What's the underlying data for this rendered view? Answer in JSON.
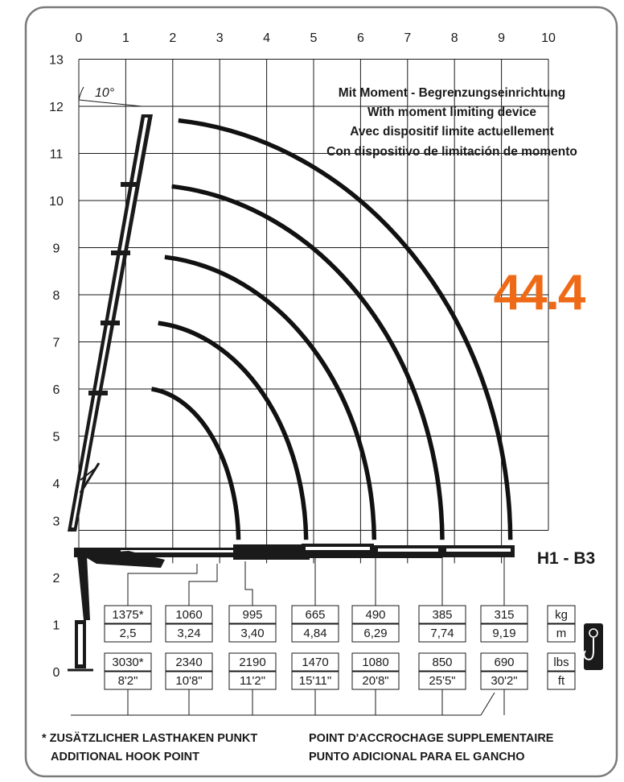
{
  "frame": {
    "border_color": "#7a7a7a"
  },
  "axes": {
    "x_ticks": [
      "0",
      "1",
      "2",
      "3",
      "4",
      "5",
      "6",
      "7",
      "8",
      "9",
      "10"
    ],
    "y_ticks": [
      "0",
      "1",
      "2",
      "3",
      "4",
      "5",
      "6",
      "7",
      "8",
      "9",
      "10",
      "11",
      "12",
      "13"
    ]
  },
  "boom_angle_label": "10°",
  "headings": [
    "Mit Moment - Begrenzungseinrichtung",
    "With moment limiting device",
    "Avec dispositif limite actuellement",
    "Con dispositivo de limitación de momento"
  ],
  "model_number": "44.4",
  "model_code": "H1 - B3",
  "colors": {
    "accent": "#ef6a16",
    "ink": "#1a1a1a"
  },
  "metric_rows": {
    "load": [
      "1375*",
      "1060",
      "995",
      "665",
      "490",
      "385",
      "315"
    ],
    "reach": [
      "2,5",
      "3,24",
      "3,40",
      "4,84",
      "6,29",
      "7,74",
      "9,19"
    ],
    "units": [
      "kg",
      "m"
    ]
  },
  "imperial_rows": {
    "load": [
      "3030*",
      "2340",
      "2190",
      "1470",
      "1080",
      "850",
      "690"
    ],
    "reach": [
      "8'2\"",
      "10'8\"",
      "11'2\"",
      "15'11\"",
      "20'8\"",
      "25'5\"",
      "30'2\""
    ],
    "units": [
      "lbs",
      "ft"
    ]
  },
  "hook_icon": "crane-hook-icon",
  "footnotes": {
    "left": [
      "* ZUSÄTZLICHER LASTHAKEN PUNKT",
      "ADDITIONAL HOOK POINT"
    ],
    "right": [
      "POINT D'ACCROCHAGE SUPPLEMENTAIRE",
      "PUNTO ADICIONAL PARA EL GANCHO"
    ]
  },
  "chart_data": {
    "type": "load-range-diagram",
    "xlim": [
      0,
      10
    ],
    "ylim": [
      0,
      13
    ],
    "boom_angle_deg": 10,
    "arcs": [
      {
        "reach_m": 3.4,
        "top_height_m": 6.0
      },
      {
        "reach_m": 4.84,
        "top_height_m": 7.4
      },
      {
        "reach_m": 6.29,
        "top_height_m": 8.8
      },
      {
        "reach_m": 7.74,
        "top_height_m": 10.3
      },
      {
        "reach_m": 9.19,
        "top_height_m": 11.7
      }
    ],
    "load_points": [
      {
        "reach_m": 2.5,
        "load_kg": 1375
      },
      {
        "reach_m": 3.24,
        "load_kg": 1060
      },
      {
        "reach_m": 3.4,
        "load_kg": 995
      },
      {
        "reach_m": 4.84,
        "load_kg": 665
      },
      {
        "reach_m": 6.29,
        "load_kg": 490
      },
      {
        "reach_m": 7.74,
        "load_kg": 385
      },
      {
        "reach_m": 9.19,
        "load_kg": 315
      }
    ]
  }
}
